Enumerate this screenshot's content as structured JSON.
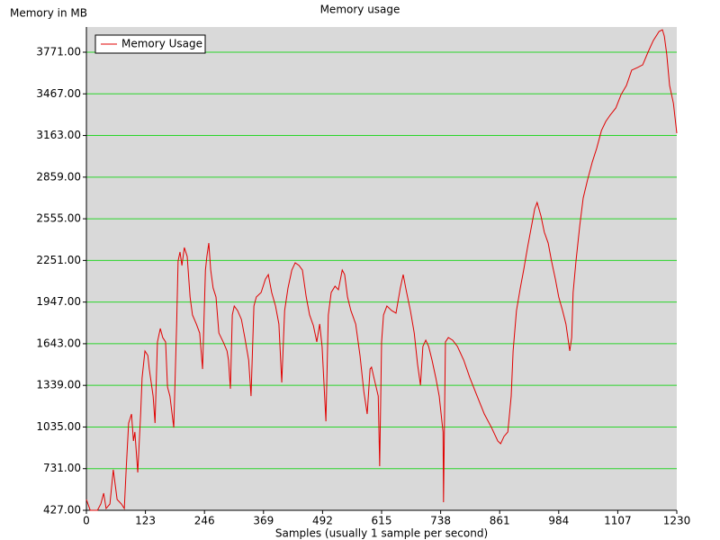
{
  "chart_data": {
    "type": "line",
    "title": "Memory usage",
    "y_label": "Memory in MB",
    "x_label": "Samples (usually 1 sample per second)",
    "x": [
      0,
      8,
      23,
      30,
      36,
      41,
      49,
      56,
      64,
      73,
      79,
      83,
      88,
      94,
      98,
      101,
      107,
      113,
      116,
      122,
      128,
      131,
      139,
      143,
      148,
      154,
      159,
      165,
      169,
      174,
      182,
      188,
      191,
      195,
      199,
      204,
      210,
      216,
      221,
      229,
      236,
      242,
      248,
      251,
      255,
      259,
      264,
      270,
      276,
      285,
      293,
      296,
      300,
      304,
      308,
      315,
      323,
      330,
      338,
      343,
      349,
      354,
      364,
      373,
      379,
      386,
      394,
      401,
      407,
      413,
      420,
      428,
      435,
      443,
      450,
      458,
      465,
      473,
      480,
      486,
      491,
      499,
      504,
      510,
      518,
      525,
      533,
      538,
      544,
      551,
      561,
      570,
      578,
      585,
      591,
      594,
      600,
      608,
      611,
      615,
      619,
      626,
      636,
      645,
      654,
      660,
      666,
      675,
      683,
      690,
      696,
      701,
      707,
      713,
      720,
      728,
      735,
      743,
      744,
      748,
      754,
      763,
      773,
      786,
      799,
      814,
      829,
      844,
      857,
      863,
      870,
      878,
      885,
      889,
      896,
      904,
      911,
      919,
      926,
      934,
      939,
      947,
      954,
      962,
      969,
      977,
      984,
      992,
      999,
      1007,
      1011,
      1014,
      1020,
      1028,
      1035,
      1044,
      1054,
      1063,
      1073,
      1082,
      1091,
      1103,
      1114,
      1125,
      1136,
      1148,
      1159,
      1170,
      1181,
      1193,
      1200,
      1204,
      1209,
      1215,
      1223,
      1230
    ],
    "series": [
      {
        "name": "Memory Usage",
        "color": "#e00000",
        "values": [
          506,
          427,
          427,
          473,
          552,
          440,
          473,
          723,
          506,
          473,
          440,
          736,
          1064,
          1130,
          933,
          999,
          703,
          1130,
          1393,
          1590,
          1557,
          1458,
          1261,
          1064,
          1656,
          1754,
          1688,
          1656,
          1327,
          1261,
          1031,
          1787,
          2247,
          2313,
          2214,
          2345,
          2280,
          1984,
          1853,
          1787,
          1721,
          1458,
          2181,
          2280,
          2378,
          2181,
          2050,
          1984,
          1721,
          1656,
          1590,
          1524,
          1314,
          1853,
          1918,
          1885,
          1820,
          1688,
          1524,
          1261,
          1918,
          1984,
          2017,
          2115,
          2148,
          2017,
          1918,
          1787,
          1360,
          1885,
          2050,
          2181,
          2234,
          2214,
          2181,
          1984,
          1853,
          1774,
          1656,
          1787,
          1623,
          1077,
          1853,
          2017,
          2063,
          2037,
          2181,
          2148,
          1984,
          1885,
          1787,
          1557,
          1294,
          1130,
          1458,
          1472,
          1380,
          1261,
          749,
          1656,
          1853,
          1918,
          1885,
          1866,
          2050,
          2148,
          2037,
          1885,
          1721,
          1491,
          1340,
          1623,
          1669,
          1623,
          1524,
          1393,
          1261,
          999,
          486,
          1656,
          1688,
          1669,
          1623,
          1524,
          1393,
          1261,
          1130,
          1031,
          933,
          913,
          966,
          999,
          1261,
          1590,
          1885,
          2050,
          2181,
          2345,
          2477,
          2628,
          2674,
          2575,
          2457,
          2378,
          2247,
          2115,
          1984,
          1885,
          1787,
          1590,
          1688,
          2017,
          2247,
          2510,
          2707,
          2838,
          2970,
          3068,
          3199,
          3265,
          3311,
          3364,
          3462,
          3528,
          3640,
          3659,
          3679,
          3771,
          3856,
          3922,
          3935,
          3889,
          3758,
          3528,
          3397,
          3180
        ]
      }
    ],
    "xlim": [
      0,
      1230
    ],
    "xticks": [
      0,
      123,
      246,
      369,
      492,
      615,
      738,
      861,
      984,
      1107,
      1230
    ],
    "ylim": [
      427,
      3955
    ],
    "yticks": [
      {
        "value": 427,
        "label": "427.00"
      },
      {
        "value": 731,
        "label": "731.00"
      },
      {
        "value": 1035,
        "label": "1035.00"
      },
      {
        "value": 1339,
        "label": "1339.00"
      },
      {
        "value": 1643,
        "label": "1643.00"
      },
      {
        "value": 1947,
        "label": "1947.00"
      },
      {
        "value": 2251,
        "label": "2251.00"
      },
      {
        "value": 2555,
        "label": "2555.00"
      },
      {
        "value": 2859,
        "label": "2859.00"
      },
      {
        "value": 3163,
        "label": "3163.00"
      },
      {
        "value": 3467,
        "label": "3467.00"
      },
      {
        "value": 3771,
        "label": "3771.00"
      }
    ],
    "grid": true,
    "grid_color": "#2ad52a",
    "legend": "upper-left"
  }
}
